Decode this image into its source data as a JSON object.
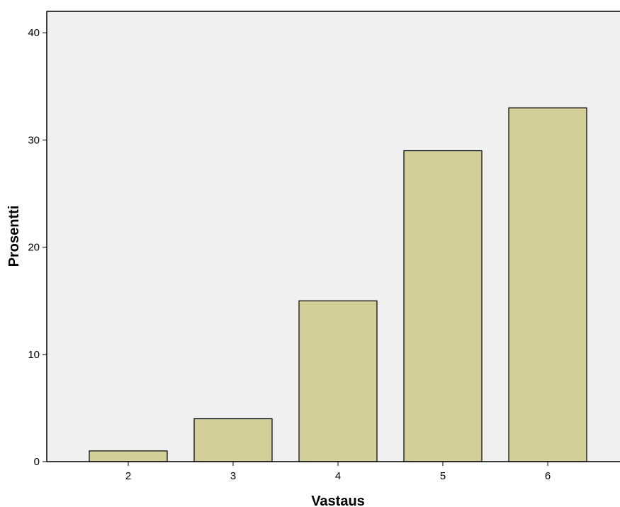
{
  "chart_data": {
    "type": "bar",
    "title": "",
    "xlabel": "Vastaus",
    "ylabel": "Prosentti",
    "categories": [
      "2",
      "3",
      "4",
      "5",
      "6"
    ],
    "values": [
      1,
      4,
      15,
      29,
      33
    ],
    "ylim": [
      0,
      42
    ],
    "yticks": [
      0,
      10,
      20,
      30,
      40
    ],
    "grid": false,
    "colors": {
      "bar_fill": "#d4cf99",
      "bar_stroke": "#000000",
      "plot_background": "#f0f0f0"
    }
  }
}
